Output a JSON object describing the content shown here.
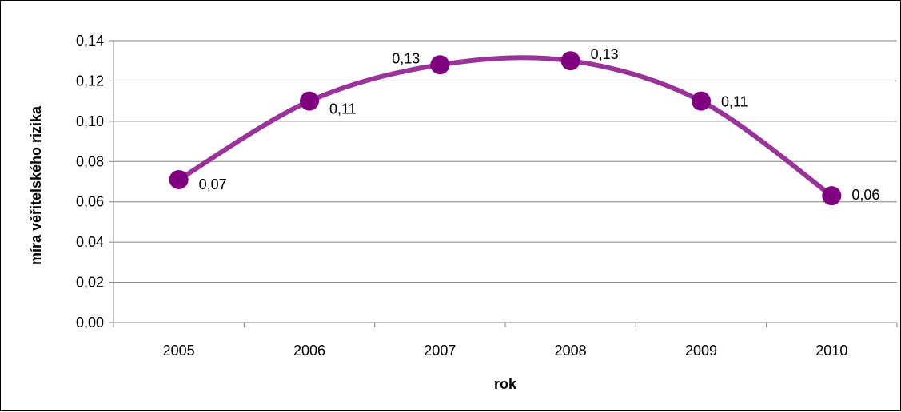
{
  "chart_data": {
    "type": "line",
    "title": "",
    "xlabel": "rok",
    "ylabel": "míra věřitelského rizika",
    "categories": [
      "2005",
      "2006",
      "2007",
      "2008",
      "2009",
      "2010"
    ],
    "series": [
      {
        "values": [
          0.071,
          0.11,
          0.128,
          0.13,
          0.11,
          0.063
        ],
        "data_labels": [
          "0,07",
          "0,11",
          "0,13",
          "0,13",
          "0,11",
          "0,06"
        ],
        "color": "#993399",
        "marker_color": "#800080"
      }
    ],
    "ylim": [
      0,
      0.14
    ],
    "yticks": [
      "0,00",
      "0,02",
      "0,04",
      "0,06",
      "0,08",
      "0,10",
      "0,12",
      "0,14"
    ],
    "smooth": true,
    "grid": true,
    "legend": "none"
  }
}
